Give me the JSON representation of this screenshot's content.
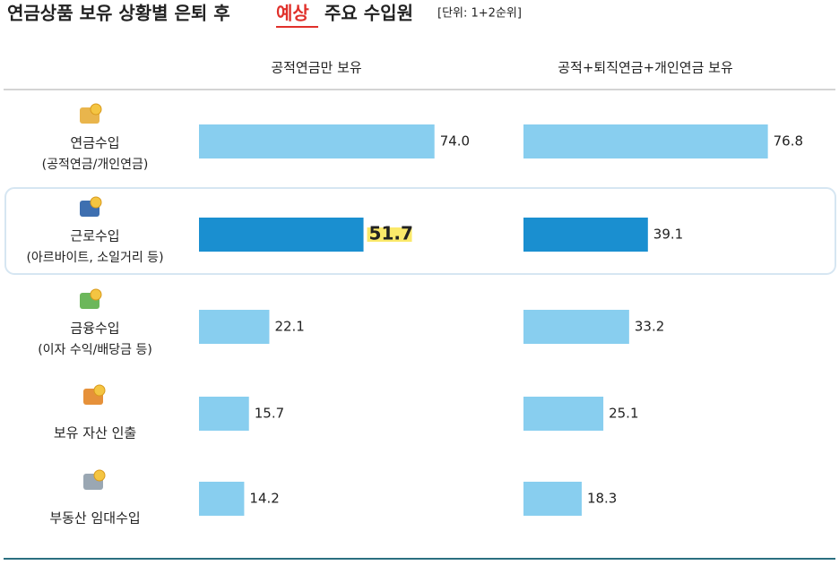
{
  "chart_data": {
    "type": "bar",
    "orientation": "horizontal",
    "title_parts": [
      "연금상품 보유 상황별 은퇴 후",
      "예상",
      "주요 수입원"
    ],
    "unit_note": "[단위: 1+2순위]",
    "categories": [
      "연금수입",
      "근로수입",
      "금융수입",
      "보유 자산 인출",
      "부동산 임대수입"
    ],
    "category_notes": [
      "(공적연금/개인연금)",
      "(아르바이트, 소일거리 등)",
      "(이자 수익/배당금 등)",
      null,
      null
    ],
    "xlim": [
      0,
      100
    ],
    "highlight_category": 1,
    "highlight_color": "#1a8fd0",
    "series": [
      {
        "name": "공적연금만 보유",
        "color": "#88ceef",
        "values": [
          74.0,
          51.7,
          22.1,
          15.7,
          14.2
        ],
        "value_labels": [
          "74.0",
          "51.7",
          "22.1",
          "15.7",
          "14.2"
        ]
      },
      {
        "name": "공적+퇴직연금+개인연금 보유",
        "color": "#88ceef",
        "values": [
          76.8,
          39.1,
          33.2,
          25.1,
          18.3
        ],
        "value_labels": [
          "76.8",
          "39.1",
          "33.2",
          "25.1",
          "18.3"
        ]
      }
    ]
  }
}
